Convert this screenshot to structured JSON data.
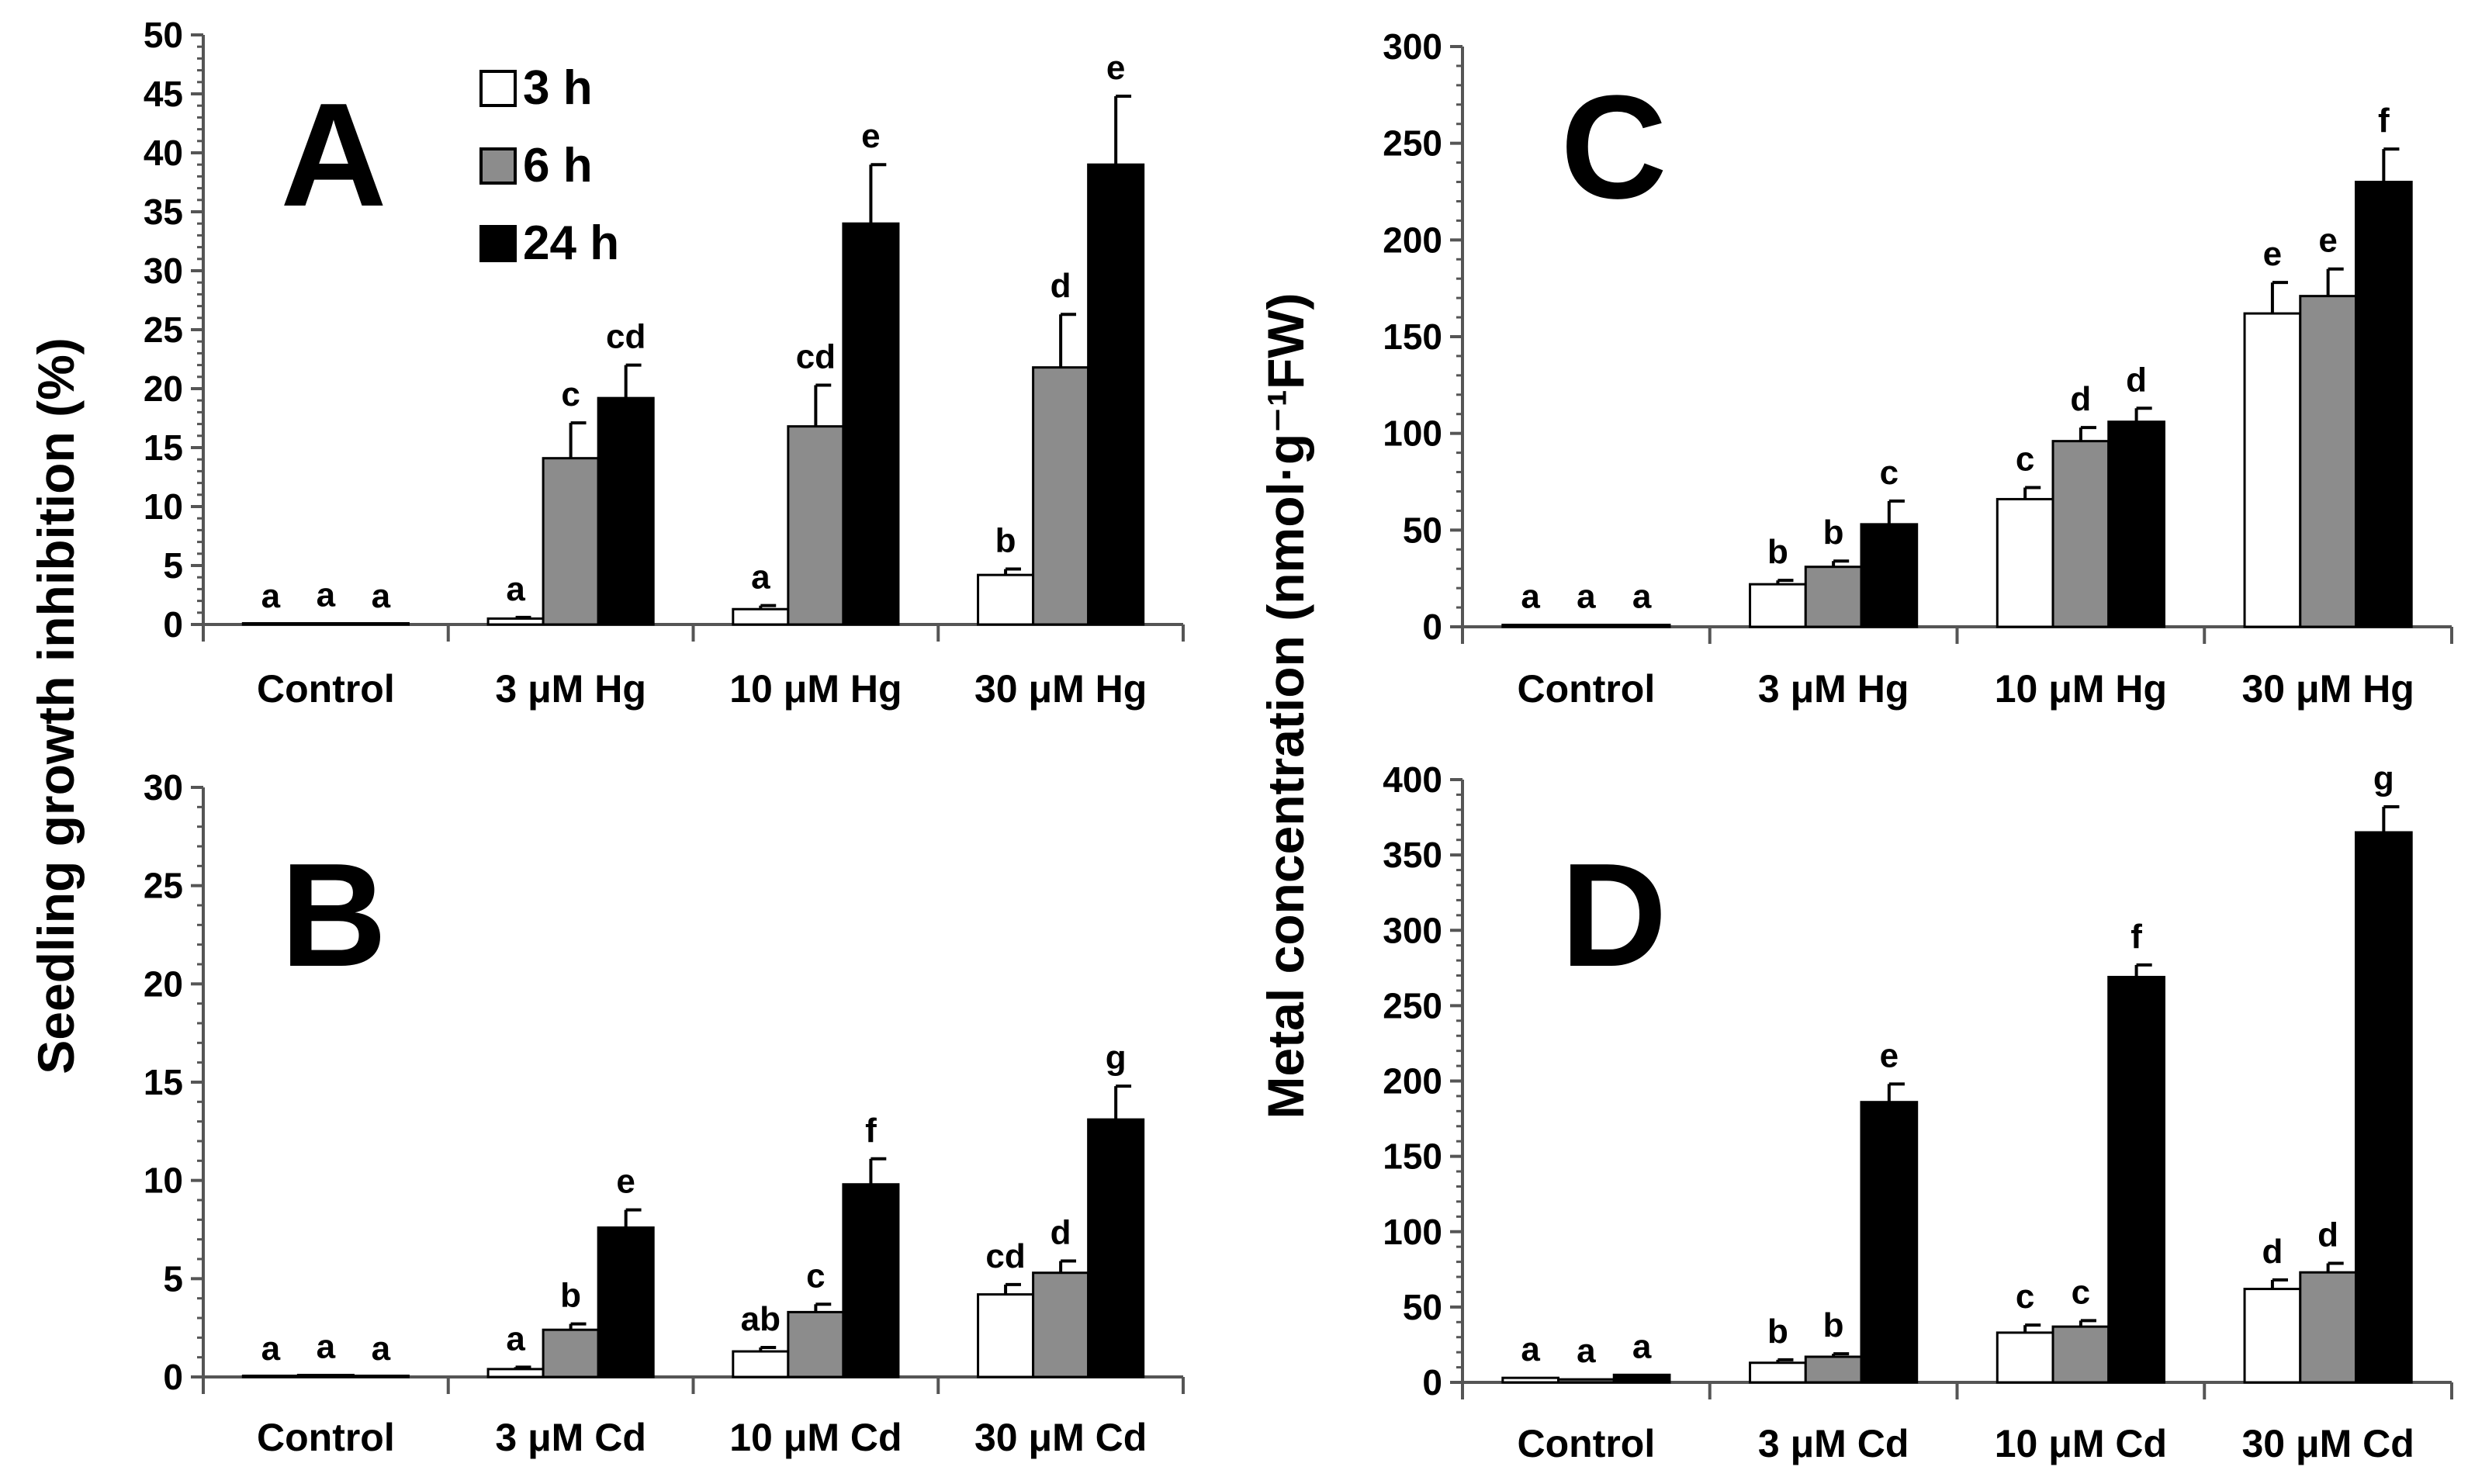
{
  "figure": {
    "left_ylabel": "Seedling growth inhibition (%)",
    "right_ylabel": "Metal concentration (nmol·g⁻¹FW)"
  },
  "legend": [
    {
      "name": "3 h",
      "color": "#ffffff"
    },
    {
      "name": "6 h",
      "color": "#8c8c8c"
    },
    {
      "name": "24 h",
      "color": "#000000"
    }
  ],
  "chart_data": [
    {
      "panel": "A",
      "type": "bar",
      "title": "",
      "ylabel": "Seedling growth inhibition (%)",
      "ylim": [
        0,
        50
      ],
      "yticks": [
        0,
        5,
        10,
        15,
        20,
        25,
        30,
        35,
        40,
        45,
        50
      ],
      "categories": [
        "Control",
        "3 μM Hg",
        "10 μM Hg",
        "30 μM Hg"
      ],
      "series": [
        {
          "name": "3 h",
          "color": "#ffffff",
          "values": [
            0,
            0.5,
            1.3,
            4.2
          ],
          "errors": [
            0,
            0.1,
            0.3,
            0.5
          ],
          "letters": [
            "a",
            "a",
            "a",
            "b"
          ]
        },
        {
          "name": "6 h",
          "color": "#8c8c8c",
          "values": [
            0.1,
            14.1,
            16.8,
            21.8
          ],
          "errors": [
            0,
            3.0,
            3.5,
            4.5
          ],
          "letters": [
            "a",
            "c",
            "cd",
            "d"
          ]
        },
        {
          "name": "24 h",
          "color": "#000000",
          "values": [
            0,
            19.2,
            34.0,
            39.0
          ],
          "errors": [
            0,
            2.8,
            5.0,
            5.8
          ],
          "letters": [
            "a",
            "cd",
            "e",
            "e"
          ]
        }
      ]
    },
    {
      "panel": "B",
      "type": "bar",
      "title": "",
      "ylabel": "Seedling growth inhibition (%)",
      "ylim": [
        0,
        30
      ],
      "yticks": [
        0,
        5,
        10,
        15,
        20,
        25,
        30
      ],
      "categories": [
        "Control",
        "3 μM Cd",
        "10 μM Cd",
        "30 μM Cd"
      ],
      "series": [
        {
          "name": "3 h",
          "color": "#ffffff",
          "values": [
            0,
            0.4,
            1.3,
            4.2
          ],
          "errors": [
            0,
            0.1,
            0.2,
            0.5
          ],
          "letters": [
            "a",
            "a",
            "ab",
            "cd"
          ]
        },
        {
          "name": "6 h",
          "color": "#8c8c8c",
          "values": [
            0.1,
            2.4,
            3.3,
            5.3
          ],
          "errors": [
            0,
            0.3,
            0.4,
            0.6
          ],
          "letters": [
            "a",
            "b",
            "c",
            "d"
          ]
        },
        {
          "name": "24 h",
          "color": "#000000",
          "values": [
            0,
            7.6,
            9.8,
            13.1
          ],
          "errors": [
            0,
            0.9,
            1.3,
            1.7
          ],
          "letters": [
            "a",
            "e",
            "f",
            "g"
          ]
        }
      ]
    },
    {
      "panel": "C",
      "type": "bar",
      "title": "",
      "ylabel": "Metal concentration (nmol·g⁻¹FW)",
      "ylim": [
        0,
        300
      ],
      "yticks": [
        0,
        50,
        100,
        150,
        200,
        250,
        300
      ],
      "categories": [
        "Control",
        "3 μM Hg",
        "10 μM Hg",
        "30 μM Hg"
      ],
      "series": [
        {
          "name": "3 h",
          "color": "#ffffff",
          "values": [
            1,
            22,
            66,
            162
          ],
          "errors": [
            0,
            2,
            6,
            16
          ],
          "letters": [
            "a",
            "b",
            "c",
            "e"
          ]
        },
        {
          "name": "6 h",
          "color": "#8c8c8c",
          "values": [
            1,
            31,
            96,
            171
          ],
          "errors": [
            0,
            3,
            7,
            14
          ],
          "letters": [
            "a",
            "b",
            "d",
            "e"
          ]
        },
        {
          "name": "24 h",
          "color": "#000000",
          "values": [
            1,
            53,
            106,
            230
          ],
          "errors": [
            0,
            12,
            7,
            17
          ],
          "letters": [
            "a",
            "c",
            "d",
            "f"
          ]
        }
      ]
    },
    {
      "panel": "D",
      "type": "bar",
      "title": "",
      "ylabel": "Metal concentration (nmol·g⁻¹FW)",
      "ylim": [
        0,
        400
      ],
      "yticks": [
        0,
        50,
        100,
        150,
        200,
        250,
        300,
        350,
        400
      ],
      "categories": [
        "Control",
        "3 μM Cd",
        "10 μM Cd",
        "30 μM Cd"
      ],
      "series": [
        {
          "name": "3 h",
          "color": "#ffffff",
          "values": [
            3,
            13,
            33,
            62
          ],
          "errors": [
            0,
            2,
            5,
            6
          ],
          "letters": [
            "a",
            "b",
            "c",
            "d"
          ]
        },
        {
          "name": "6 h",
          "color": "#8c8c8c",
          "values": [
            2,
            17,
            37,
            73
          ],
          "errors": [
            0,
            2,
            4,
            6
          ],
          "letters": [
            "a",
            "b",
            "c",
            "d"
          ]
        },
        {
          "name": "24 h",
          "color": "#000000",
          "values": [
            5,
            186,
            269,
            365
          ],
          "errors": [
            0,
            12,
            8,
            17
          ],
          "letters": [
            "a",
            "e",
            "f",
            "g"
          ]
        }
      ]
    }
  ]
}
